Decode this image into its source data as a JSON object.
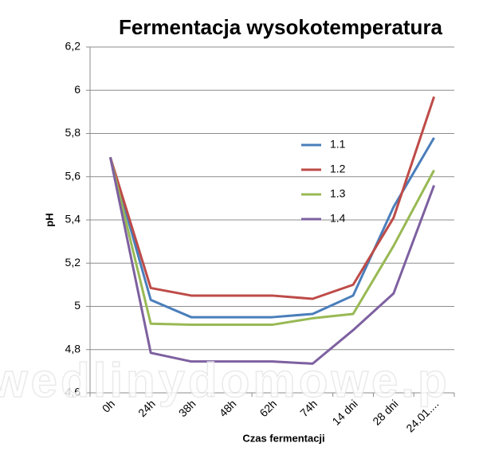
{
  "chart_data": {
    "type": "line",
    "title": "Fermentacja wysokotemperatura",
    "x_label": "Czas fermentacji",
    "y_label": "pH",
    "watermark": "wedlinydomowe.p",
    "categories": [
      "0h",
      "24h",
      "38h",
      "48h",
      "62h",
      "74h",
      "14 dni",
      "28 dni",
      "24.01...."
    ],
    "series": [
      {
        "name": "1.1",
        "color": "#4a7ebb",
        "values": [
          5.69,
          5.03,
          4.95,
          4.95,
          4.95,
          4.965,
          5.05,
          5.46,
          5.78
        ]
      },
      {
        "name": "1.2",
        "color": "#be4b48",
        "values": [
          5.69,
          5.085,
          5.05,
          5.05,
          5.05,
          5.035,
          5.1,
          5.41,
          5.97
        ]
      },
      {
        "name": "1.3",
        "color": "#98b954",
        "values": [
          5.69,
          4.92,
          4.915,
          4.915,
          4.915,
          4.945,
          4.965,
          5.28,
          5.63
        ]
      },
      {
        "name": "1.4",
        "color": "#7d60a0",
        "values": [
          5.69,
          4.785,
          4.745,
          4.745,
          4.745,
          4.735,
          4.89,
          5.06,
          5.56
        ]
      }
    ],
    "ylim": [
      4.6,
      6.2
    ],
    "yticks": [
      {
        "value": 4.6,
        "label": "4,6"
      },
      {
        "value": 4.8,
        "label": "4,8"
      },
      5,
      {
        "value": 5.2,
        "label": "5,2"
      },
      {
        "value": 5.4,
        "label": "5,4"
      },
      {
        "value": 5.6,
        "label": "5,6"
      },
      {
        "value": 5.8,
        "label": "5,8"
      },
      6,
      {
        "value": 6.2,
        "label": "6,2"
      }
    ],
    "grid": true,
    "legend": "inside"
  }
}
